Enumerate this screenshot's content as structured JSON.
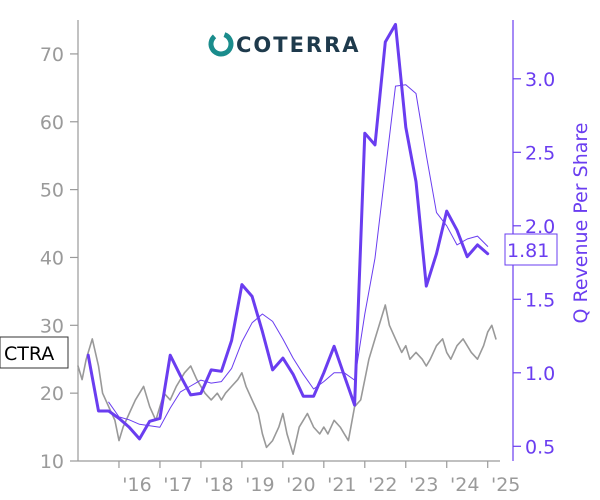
{
  "logo": {
    "text": "COTERRA",
    "icon": "coterra-ring-icon",
    "accent": "#1a8c8c",
    "text_color": "#1e3a4c"
  },
  "ticker_tag": "CTRA",
  "latest_value_tag": "1.81",
  "colors": {
    "price": "#999999",
    "revenue": "#6a3df0",
    "left_axis": "#9a9a9a",
    "right_axis": "#6a3df0"
  },
  "chart_data": {
    "type": "line",
    "title": "",
    "xlabel": "",
    "ylabel_left": "",
    "ylabel_right": "Q Revenue Per Share",
    "xlim": [
      2015.0,
      2025.3
    ],
    "ylim_left": [
      10,
      75
    ],
    "ylim_right": [
      0.4,
      3.4
    ],
    "x_ticks": [
      2016,
      2017,
      2018,
      2019,
      2020,
      2021,
      2022,
      2023,
      2024,
      2025
    ],
    "x_tick_labels": [
      "'16",
      "'17",
      "'18",
      "'19",
      "'20",
      "'21",
      "'22",
      "'23",
      "'24",
      "'25"
    ],
    "y_ticks_left": [
      10,
      20,
      30,
      40,
      50,
      60,
      70
    ],
    "y_ticks_right": [
      0.5,
      1.0,
      1.5,
      2.0,
      2.5,
      3.0
    ],
    "grid": false,
    "series": [
      {
        "name": "CTRA",
        "axis": "left",
        "style": "price",
        "x": [
          2015.0,
          2015.1,
          2015.2,
          2015.35,
          2015.5,
          2015.6,
          2015.75,
          2015.9,
          2016.0,
          2016.1,
          2016.25,
          2016.4,
          2016.5,
          2016.6,
          2016.75,
          2016.9,
          2017.0,
          2017.1,
          2017.25,
          2017.4,
          2017.5,
          2017.6,
          2017.75,
          2017.9,
          2018.0,
          2018.1,
          2018.25,
          2018.4,
          2018.5,
          2018.6,
          2018.75,
          2018.9,
          2019.0,
          2019.1,
          2019.25,
          2019.4,
          2019.5,
          2019.6,
          2019.75,
          2019.9,
          2020.0,
          2020.1,
          2020.25,
          2020.4,
          2020.5,
          2020.6,
          2020.75,
          2020.9,
          2021.0,
          2021.1,
          2021.25,
          2021.4,
          2021.5,
          2021.6,
          2021.75,
          2021.9,
          2022.0,
          2022.1,
          2022.25,
          2022.4,
          2022.5,
          2022.6,
          2022.75,
          2022.9,
          2023.0,
          2023.1,
          2023.25,
          2023.4,
          2023.5,
          2023.6,
          2023.75,
          2023.9,
          2024.0,
          2024.1,
          2024.25,
          2024.4,
          2024.5,
          2024.6,
          2024.75,
          2024.9,
          2025.0,
          2025.1,
          2025.2
        ],
        "y": [
          24,
          22,
          25,
          28,
          24,
          20,
          18,
          16,
          13,
          15,
          17,
          19,
          20,
          21,
          18,
          16,
          18,
          20,
          19,
          21,
          22,
          23,
          24,
          22,
          21,
          20,
          19,
          20,
          19,
          20,
          21,
          22,
          23,
          21,
          19,
          17,
          14,
          12,
          13,
          15,
          17,
          14,
          11,
          15,
          16,
          17,
          15,
          14,
          15,
          14,
          16,
          15,
          14,
          13,
          18,
          19,
          22,
          25,
          28,
          31,
          33,
          30,
          28,
          26,
          27,
          25,
          26,
          25,
          24,
          25,
          27,
          28,
          26,
          25,
          27,
          28,
          27,
          26,
          25,
          27,
          29,
          30,
          28
        ]
      },
      {
        "name": "",
        "axis": "right",
        "style": "revenue",
        "x": [
          2015.25,
          2015.5,
          2015.75,
          2016.0,
          2016.25,
          2016.5,
          2016.75,
          2017.0,
          2017.25,
          2017.5,
          2017.75,
          2018.0,
          2018.25,
          2018.5,
          2018.75,
          2019.0,
          2019.25,
          2019.5,
          2019.75,
          2020.0,
          2020.25,
          2020.5,
          2020.75,
          2021.0,
          2021.25,
          2021.5,
          2021.75,
          2022.0,
          2022.25,
          2022.5,
          2022.75,
          2023.0,
          2023.25,
          2023.5,
          2023.75,
          2024.0,
          2024.25,
          2024.5,
          2024.75,
          2025.0
        ],
        "y": [
          1.12,
          0.74,
          0.74,
          0.69,
          0.63,
          0.55,
          0.67,
          0.69,
          1.12,
          0.98,
          0.85,
          0.86,
          1.02,
          1.01,
          1.22,
          1.6,
          1.52,
          1.28,
          1.02,
          1.1,
          0.99,
          0.84,
          0.84,
          1.0,
          1.18,
          0.98,
          0.78,
          2.63,
          2.55,
          3.25,
          3.37,
          2.67,
          2.3,
          1.59,
          1.81,
          2.1,
          1.97,
          1.79,
          1.87,
          1.81
        ]
      },
      {
        "name": "",
        "axis": "right",
        "style": "revenue-avg",
        "x": [
          2015.75,
          2016.0,
          2016.25,
          2016.5,
          2016.75,
          2017.0,
          2017.25,
          2017.5,
          2017.75,
          2018.0,
          2018.25,
          2018.5,
          2018.75,
          2019.0,
          2019.25,
          2019.5,
          2019.75,
          2020.0,
          2020.25,
          2020.5,
          2020.75,
          2021.0,
          2021.25,
          2021.5,
          2021.75,
          2022.0,
          2022.25,
          2022.5,
          2022.75,
          2023.0,
          2023.25,
          2023.5,
          2023.75,
          2024.0,
          2024.25,
          2024.5,
          2024.75,
          2025.0
        ],
        "y": [
          0.8,
          0.7,
          0.68,
          0.65,
          0.64,
          0.63,
          0.76,
          0.87,
          0.91,
          0.95,
          0.93,
          0.94,
          1.03,
          1.21,
          1.34,
          1.4,
          1.35,
          1.23,
          1.1,
          0.99,
          0.89,
          0.94,
          1.0,
          1.0,
          0.95,
          1.4,
          1.78,
          2.37,
          2.95,
          2.96,
          2.9,
          2.48,
          2.09,
          2.0,
          1.87,
          1.91,
          1.93,
          1.86
        ]
      }
    ]
  }
}
